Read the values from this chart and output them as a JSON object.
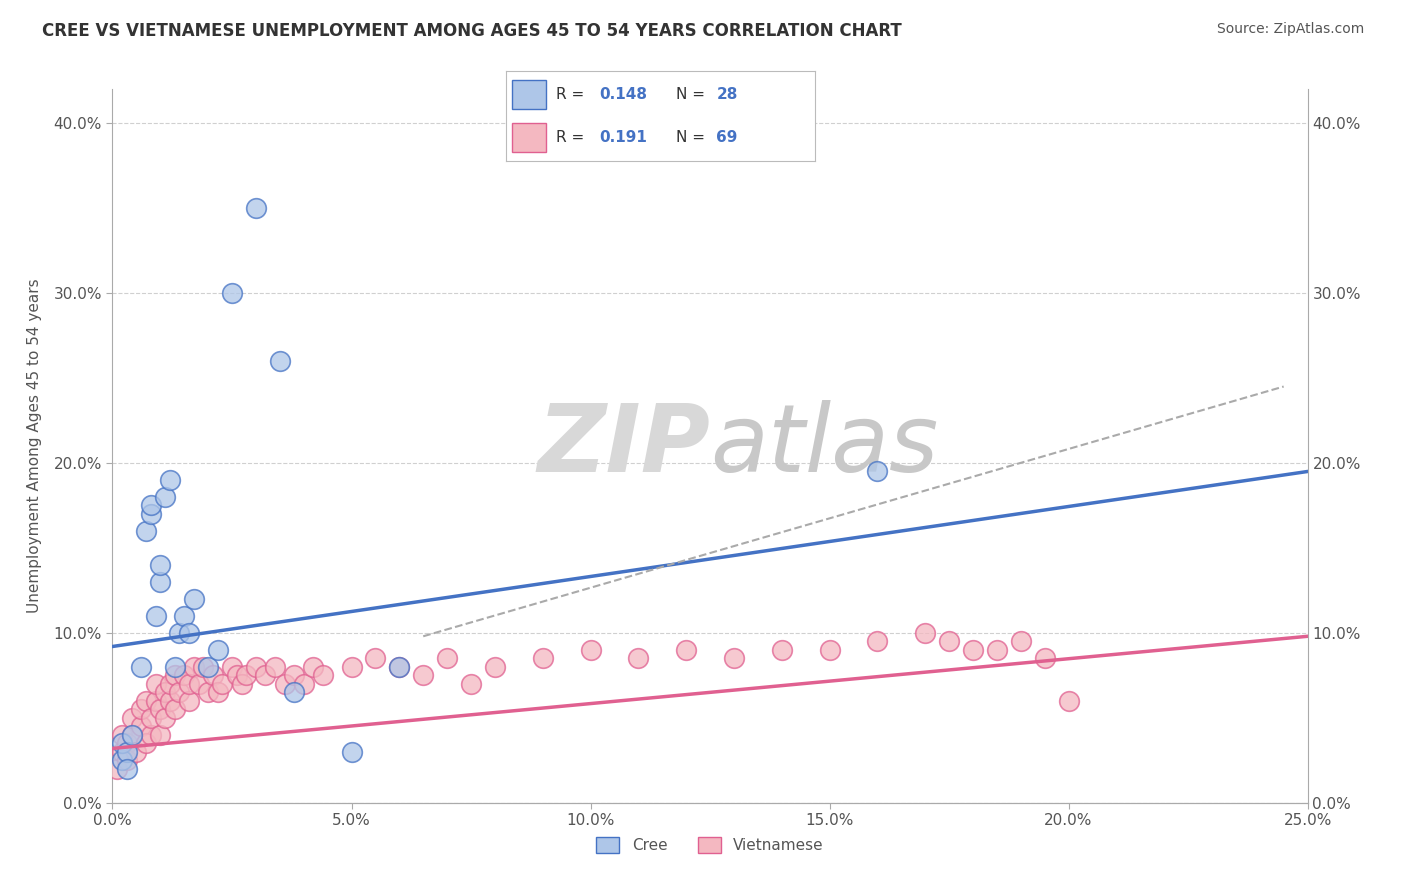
{
  "title": "CREE VS VIETNAMESE UNEMPLOYMENT AMONG AGES 45 TO 54 YEARS CORRELATION CHART",
  "source": "Source: ZipAtlas.com",
  "ylabel": "Unemployment Among Ages 45 to 54 years",
  "xlim": [
    0.0,
    0.25
  ],
  "ylim": [
    0.0,
    0.42
  ],
  "xtick_vals": [
    0.0,
    0.05,
    0.1,
    0.15,
    0.2,
    0.25
  ],
  "ytick_vals": [
    0.0,
    0.1,
    0.2,
    0.3,
    0.4
  ],
  "legend_r_cree": "0.148",
  "legend_n_cree": "28",
  "legend_r_viet": "0.191",
  "legend_n_viet": "69",
  "cree_fill_color": "#aec6e8",
  "viet_fill_color": "#f4b8c1",
  "cree_edge_color": "#4472c4",
  "viet_edge_color": "#e06090",
  "cree_line_color": "#4472c4",
  "viet_line_color": "#e06090",
  "dash_line_color": "#aaaaaa",
  "background_color": "#ffffff",
  "grid_color": "#d0d0d0",
  "text_color": "#555555",
  "title_color": "#333333",
  "legend_text_color_black": "#333333",
  "legend_value_color": "#4472c4",
  "watermark_zip_color": "#d8d8d8",
  "watermark_atlas_color": "#c8c8c8",
  "cree_scatter_x": [
    0.002,
    0.002,
    0.003,
    0.003,
    0.004,
    0.006,
    0.007,
    0.008,
    0.008,
    0.009,
    0.01,
    0.01,
    0.011,
    0.012,
    0.013,
    0.014,
    0.015,
    0.016,
    0.017,
    0.02,
    0.022,
    0.025,
    0.03,
    0.035,
    0.038,
    0.05,
    0.06,
    0.16
  ],
  "cree_scatter_y": [
    0.025,
    0.035,
    0.03,
    0.02,
    0.04,
    0.08,
    0.16,
    0.17,
    0.175,
    0.11,
    0.13,
    0.14,
    0.18,
    0.19,
    0.08,
    0.1,
    0.11,
    0.1,
    0.12,
    0.08,
    0.09,
    0.3,
    0.35,
    0.26,
    0.065,
    0.03,
    0.08,
    0.195
  ],
  "viet_scatter_x": [
    0.001,
    0.002,
    0.002,
    0.003,
    0.003,
    0.004,
    0.004,
    0.005,
    0.006,
    0.006,
    0.007,
    0.007,
    0.008,
    0.008,
    0.009,
    0.009,
    0.01,
    0.01,
    0.011,
    0.011,
    0.012,
    0.012,
    0.013,
    0.013,
    0.014,
    0.015,
    0.016,
    0.016,
    0.017,
    0.018,
    0.019,
    0.02,
    0.021,
    0.022,
    0.023,
    0.025,
    0.026,
    0.027,
    0.028,
    0.03,
    0.032,
    0.034,
    0.036,
    0.038,
    0.04,
    0.042,
    0.044,
    0.05,
    0.055,
    0.06,
    0.065,
    0.07,
    0.075,
    0.08,
    0.09,
    0.1,
    0.11,
    0.12,
    0.13,
    0.14,
    0.15,
    0.16,
    0.17,
    0.175,
    0.18,
    0.185,
    0.19,
    0.195,
    0.2
  ],
  "viet_scatter_y": [
    0.02,
    0.03,
    0.04,
    0.035,
    0.025,
    0.04,
    0.05,
    0.03,
    0.045,
    0.055,
    0.035,
    0.06,
    0.04,
    0.05,
    0.06,
    0.07,
    0.04,
    0.055,
    0.05,
    0.065,
    0.06,
    0.07,
    0.055,
    0.075,
    0.065,
    0.075,
    0.06,
    0.07,
    0.08,
    0.07,
    0.08,
    0.065,
    0.075,
    0.065,
    0.07,
    0.08,
    0.075,
    0.07,
    0.075,
    0.08,
    0.075,
    0.08,
    0.07,
    0.075,
    0.07,
    0.08,
    0.075,
    0.08,
    0.085,
    0.08,
    0.075,
    0.085,
    0.07,
    0.08,
    0.085,
    0.09,
    0.085,
    0.09,
    0.085,
    0.09,
    0.09,
    0.095,
    0.1,
    0.095,
    0.09,
    0.09,
    0.095,
    0.085,
    0.06
  ],
  "cree_line_x0": 0.0,
  "cree_line_y0": 0.092,
  "cree_line_x1": 0.25,
  "cree_line_y1": 0.195,
  "viet_line_x0": 0.0,
  "viet_line_y0": 0.032,
  "viet_line_x1": 0.25,
  "viet_line_y1": 0.098,
  "dash_line_x0": 0.065,
  "dash_line_y0": 0.098,
  "dash_line_x1": 0.245,
  "dash_line_y1": 0.245
}
